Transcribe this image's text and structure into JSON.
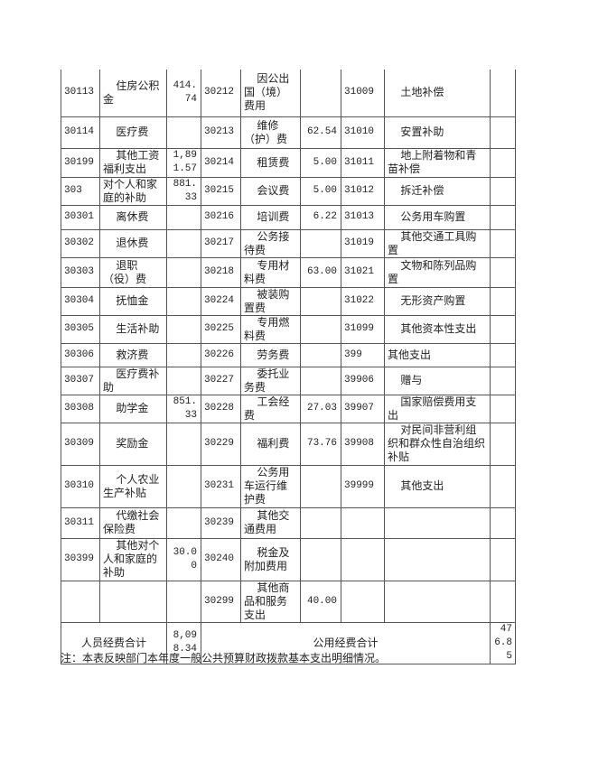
{
  "rows": [
    {
      "c1": "30113",
      "n1": "住房公积金",
      "a1": "414.74",
      "c2": "30212",
      "n2": "因公出国（境）费用",
      "a2": "",
      "c3": "31009",
      "n3": "土地补偿",
      "a3": "",
      "h": 52
    },
    {
      "c1": "30114",
      "n1": "医疗费",
      "a1": "",
      "c2": "30213",
      "n2": "维修（护）费",
      "a2": "62.54",
      "c3": "31010",
      "n3": "安置补助",
      "a3": "",
      "h": 35
    },
    {
      "c1": "30199",
      "n1": "其他工资福利支出",
      "a1": "1,891.57",
      "c2": "30214",
      "n2": "租赁费",
      "a2": "5.00",
      "c3": "31011",
      "n3": "地上附着物和青苗补偿",
      "a3": "",
      "h": 32
    },
    {
      "c1": "303",
      "n1": "对个人和家庭的补助",
      "a1": "881.33",
      "c2": "30215",
      "n2": "会议费",
      "a2": "5.00",
      "c3": "31012",
      "n3": "拆迁补偿",
      "a3": "",
      "h": 30,
      "n1plain": true
    },
    {
      "c1": "30301",
      "n1": "离休费",
      "a1": "",
      "c2": "30216",
      "n2": "培训费",
      "a2": "6.22",
      "c3": "31013",
      "n3": "公务用车购置",
      "a3": "",
      "h": 27
    },
    {
      "c1": "30302",
      "n1": "退休费",
      "a1": "",
      "c2": "30217",
      "n2": "公务接待费",
      "a2": "",
      "c3": "31019",
      "n3": "其他交通工具购置",
      "a3": "",
      "h": 30
    },
    {
      "c1": "30303",
      "n1": "退职（役）费",
      "a1": "",
      "c2": "30218",
      "n2": "专用材料费",
      "a2": "63.00",
      "c3": "31021",
      "n3": "文物和陈列品购置",
      "a3": "",
      "h": 33
    },
    {
      "c1": "30304",
      "n1": "抚恤金",
      "a1": "",
      "c2": "30224",
      "n2": "被装购置费",
      "a2": "",
      "c3": "31022",
      "n3": "无形资产购置",
      "a3": "",
      "h": 31
    },
    {
      "c1": "30305",
      "n1": "生活补助",
      "a1": "",
      "c2": "30225",
      "n2": "专用燃料费",
      "a2": "",
      "c3": "31099",
      "n3": "其他资本性支出",
      "a3": "",
      "h": 30
    },
    {
      "c1": "30306",
      "n1": "救济费",
      "a1": "",
      "c2": "30226",
      "n2": "劳务费",
      "a2": "",
      "c3": "399",
      "n3": "其他支出",
      "a3": "",
      "h": 26,
      "n3plain": true
    },
    {
      "c1": "30307",
      "n1": "医疗费补助",
      "a1": "",
      "c2": "30227",
      "n2": "委托业务费",
      "a2": "",
      "c3": "39906",
      "n3": "赠与",
      "a3": "",
      "h": 31
    },
    {
      "c1": "30308",
      "n1": "助学金",
      "a1": "851.33",
      "c2": "30228",
      "n2": "工会经费",
      "a2": "27.03",
      "c3": "39907",
      "n3": "国家赔偿费用支出",
      "a3": "",
      "h": 31
    },
    {
      "c1": "30309",
      "n1": "奖励金",
      "a1": "",
      "c2": "30229",
      "n2": "福利费",
      "a2": "73.76",
      "c3": "39908",
      "n3": "对民间非营利组织和群众性自治组织补贴",
      "a3": "",
      "h": 47
    },
    {
      "c1": "30310",
      "n1": "个人农业生产补贴",
      "a1": "",
      "c2": "30231",
      "n2": "公务用车运行维护费",
      "a2": "",
      "c3": "39999",
      "n3": "其他支出",
      "a3": "",
      "h": 47
    },
    {
      "c1": "30311",
      "n1": "代缴社会保险费",
      "a1": "",
      "c2": "30239",
      "n2": "其他交通费用",
      "a2": "",
      "c3": "",
      "n3": "",
      "a3": "",
      "h": 34
    },
    {
      "c1": "30399",
      "n1": "其他对个人和家庭的补助",
      "a1": "30.00",
      "c2": "30240",
      "n2": "税金及附加费用",
      "a2": "",
      "c3": "",
      "n3": "",
      "a3": "",
      "h": 47
    },
    {
      "c1": "",
      "n1": "",
      "a1": "",
      "c2": "30299",
      "n2": "其他商品和服务支出",
      "a2": "40.00",
      "c3": "",
      "n3": "",
      "a3": "",
      "h": 45
    }
  ],
  "totals": {
    "personnel_label": "人员经费合计",
    "personnel_value": "8,098.34",
    "public_label": "公用经费合计",
    "public_value": "476.85"
  },
  "note": "注：本表反映部门本年度一般公共预算财政拨款基本支出明细情况。"
}
